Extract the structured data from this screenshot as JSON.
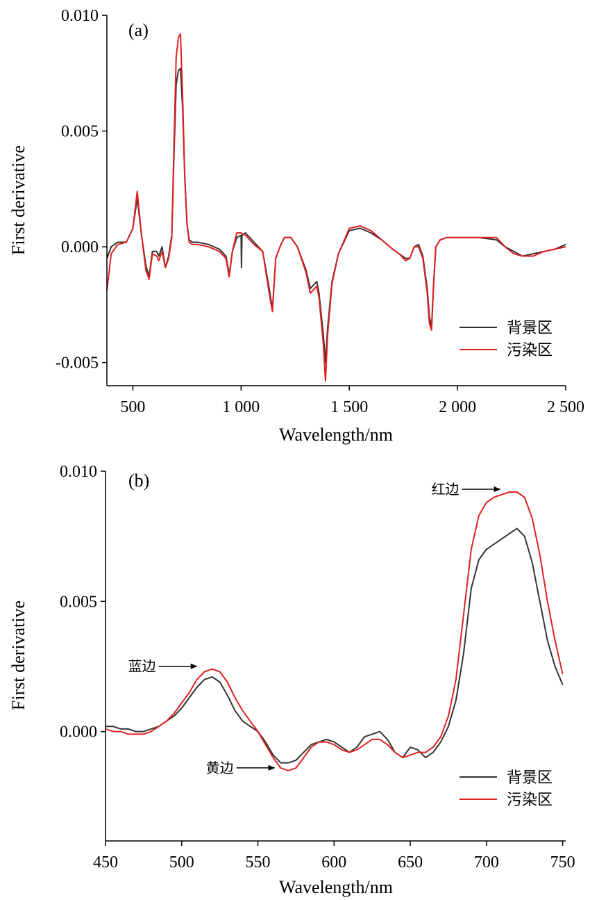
{
  "chart_data": [
    {
      "type": "line",
      "panel_label": "(a)",
      "xlabel": "Wavelength/nm",
      "ylabel": "First derivative",
      "xlim": [
        380,
        2500
      ],
      "ylim": [
        -0.006,
        0.01
      ],
      "xticks": [
        500,
        1000,
        1500,
        2000,
        2500
      ],
      "xtick_labels": [
        "500",
        "1 000",
        "1 500",
        "2 000",
        "2 500"
      ],
      "yticks": [
        -0.005,
        0.0,
        0.005,
        0.01
      ],
      "ytick_labels": [
        "-0.005",
        "0.000",
        "0.005",
        "0.010"
      ],
      "legend": {
        "position": "bottom-right"
      },
      "series": [
        {
          "name": "背景区",
          "color": "#333333",
          "x": [
            380,
            400,
            430,
            470,
            500,
            520,
            540,
            560,
            575,
            590,
            610,
            620,
            635,
            650,
            665,
            680,
            690,
            700,
            710,
            720,
            730,
            740,
            750,
            760,
            775,
            800,
            850,
            900,
            930,
            945,
            960,
            980,
            1000,
            1002,
            1004,
            1020,
            1060,
            1100,
            1130,
            1145,
            1160,
            1180,
            1200,
            1230,
            1260,
            1300,
            1320,
            1340,
            1350,
            1360,
            1380,
            1390,
            1400,
            1420,
            1450,
            1500,
            1550,
            1600,
            1650,
            1700,
            1730,
            1760,
            1780,
            1800,
            1820,
            1840,
            1860,
            1870,
            1880,
            1890,
            1900,
            1920,
            1950,
            2000,
            2100,
            2180,
            2220,
            2260,
            2300,
            2350,
            2400,
            2450,
            2500
          ],
          "y": [
            -0.0005,
            0.0,
            0.0002,
            0.0002,
            0.0008,
            0.0021,
            0.0005,
            -0.0008,
            -0.0013,
            -0.0002,
            -0.0002,
            -0.0004,
            0.0,
            -0.0009,
            -0.0004,
            0.0005,
            0.004,
            0.007,
            0.0076,
            0.0077,
            0.006,
            0.003,
            0.001,
            0.0003,
            0.0002,
            0.0002,
            0.0001,
            -0.0001,
            -0.0004,
            -0.0012,
            -0.0002,
            0.0004,
            0.0005,
            -0.0009,
            0.0005,
            0.0006,
            0.0002,
            -0.0002,
            -0.0018,
            -0.0027,
            -0.0005,
            0.0,
            0.0004,
            0.0004,
            0.0,
            -0.001,
            -0.0018,
            -0.0016,
            -0.0015,
            -0.002,
            -0.0038,
            -0.005,
            -0.0035,
            -0.0015,
            -0.0003,
            0.0007,
            0.0008,
            0.0006,
            0.0003,
            -0.0001,
            -0.0003,
            -0.0005,
            -0.0005,
            0.0,
            0.0001,
            -0.0004,
            -0.0018,
            -0.003,
            -0.0035,
            -0.0015,
            0.0,
            0.0003,
            0.0004,
            0.0004,
            0.0004,
            0.0003,
            0.0,
            -0.0002,
            -0.0004,
            -0.0003,
            -0.0002,
            -0.0001,
            0.0001
          ]
        },
        {
          "name": "污染区",
          "color": "#e02020",
          "x": [
            380,
            400,
            430,
            470,
            500,
            520,
            540,
            560,
            575,
            590,
            610,
            620,
            635,
            650,
            665,
            680,
            690,
            700,
            710,
            720,
            730,
            740,
            750,
            760,
            775,
            800,
            850,
            900,
            930,
            945,
            960,
            980,
            1000,
            1020,
            1060,
            1100,
            1130,
            1145,
            1160,
            1180,
            1200,
            1230,
            1260,
            1300,
            1320,
            1340,
            1350,
            1360,
            1380,
            1390,
            1400,
            1420,
            1450,
            1500,
            1550,
            1600,
            1650,
            1700,
            1730,
            1760,
            1780,
            1800,
            1820,
            1840,
            1860,
            1870,
            1880,
            1890,
            1900,
            1920,
            1950,
            2000,
            2100,
            2180,
            2220,
            2260,
            2300,
            2350,
            2400,
            2450,
            2500
          ],
          "y": [
            -0.0019,
            -0.0003,
            0.0001,
            0.0002,
            0.0008,
            0.0024,
            0.0005,
            -0.001,
            -0.0014,
            -0.0003,
            -0.0004,
            -0.0006,
            -0.0002,
            -0.0009,
            -0.0005,
            0.0004,
            0.0045,
            0.0082,
            0.009,
            0.0092,
            0.0065,
            0.003,
            0.001,
            0.0002,
            0.0001,
            0.0001,
            0.0,
            -0.0002,
            -0.0005,
            -0.0013,
            -0.0002,
            0.0006,
            0.0006,
            0.0005,
            0.0001,
            -0.0002,
            -0.002,
            -0.0028,
            -0.0005,
            0.0,
            0.0004,
            0.0004,
            0.0,
            -0.0011,
            -0.002,
            -0.0018,
            -0.0017,
            -0.0022,
            -0.0042,
            -0.0058,
            -0.0038,
            -0.0016,
            -0.0003,
            0.0008,
            0.0009,
            0.0007,
            0.0003,
            -0.0001,
            -0.0003,
            -0.0006,
            -0.0005,
            0.0,
            0.0,
            -0.0005,
            -0.002,
            -0.0033,
            -0.0036,
            -0.0016,
            0.0,
            0.0003,
            0.0004,
            0.0004,
            0.0004,
            0.0004,
            0.0,
            -0.0003,
            -0.0004,
            -0.0004,
            -0.0002,
            -0.0001,
            0.0
          ]
        }
      ]
    },
    {
      "type": "line",
      "panel_label": "(b)",
      "xlabel": "Wavelength/nm",
      "ylabel": "First derivative",
      "xlim": [
        450,
        752
      ],
      "ylim": [
        -0.0042,
        0.01
      ],
      "xticks": [
        450,
        500,
        550,
        600,
        650,
        700,
        750
      ],
      "xtick_labels": [
        "450",
        "500",
        "550",
        "600",
        "650",
        "700",
        "750"
      ],
      "yticks": [
        0.0,
        0.005,
        0.01
      ],
      "ytick_labels": [
        "0.000",
        "0.005",
        "0.010"
      ],
      "legend": {
        "position": "bottom-right"
      },
      "annotations": [
        {
          "text": "蓝边",
          "x": 520,
          "y": 0.0024
        },
        {
          "text": "黄边",
          "x": 571,
          "y": -0.0015
        },
        {
          "text": "红边",
          "x": 719,
          "y": 0.0092
        }
      ],
      "series": [
        {
          "name": "背景区",
          "color": "#333333",
          "x": [
            450,
            455,
            460,
            465,
            470,
            475,
            480,
            485,
            490,
            495,
            500,
            505,
            510,
            515,
            520,
            525,
            530,
            535,
            540,
            545,
            550,
            555,
            560,
            565,
            570,
            575,
            580,
            585,
            590,
            595,
            600,
            605,
            610,
            615,
            620,
            625,
            630,
            635,
            640,
            645,
            650,
            655,
            660,
            665,
            670,
            675,
            680,
            685,
            690,
            695,
            700,
            705,
            710,
            715,
            720,
            725,
            730,
            735,
            740,
            745,
            750
          ],
          "y": [
            0.0002,
            0.0002,
            0.0001,
            0.0001,
            0.0,
            0.0,
            0.0001,
            0.0002,
            0.0004,
            0.0006,
            0.0009,
            0.0013,
            0.0017,
            0.002,
            0.0021,
            0.0019,
            0.0014,
            0.0008,
            0.0004,
            0.0002,
            0.0,
            -0.0004,
            -0.0009,
            -0.0012,
            -0.0012,
            -0.0011,
            -0.0008,
            -0.0005,
            -0.0004,
            -0.0003,
            -0.0004,
            -0.0006,
            -0.0008,
            -0.0006,
            -0.0002,
            -0.0001,
            0.0,
            -0.0003,
            -0.0008,
            -0.001,
            -0.0006,
            -0.0007,
            -0.001,
            -0.0008,
            -0.0004,
            0.0002,
            0.0012,
            0.003,
            0.0055,
            0.0066,
            0.007,
            0.0072,
            0.0074,
            0.0076,
            0.0078,
            0.0075,
            0.0065,
            0.005,
            0.0035,
            0.0025,
            0.0018
          ]
        },
        {
          "name": "污染区",
          "color": "#e02020",
          "x": [
            450,
            455,
            460,
            465,
            470,
            475,
            480,
            485,
            490,
            495,
            500,
            505,
            510,
            515,
            520,
            525,
            530,
            535,
            540,
            545,
            550,
            555,
            560,
            565,
            570,
            575,
            580,
            585,
            590,
            595,
            600,
            605,
            610,
            615,
            620,
            625,
            630,
            635,
            640,
            645,
            650,
            655,
            660,
            665,
            670,
            675,
            680,
            685,
            690,
            695,
            700,
            705,
            710,
            715,
            720,
            725,
            730,
            735,
            740,
            745,
            750
          ],
          "y": [
            0.0001,
            0.0,
            0.0,
            -0.0001,
            -0.0001,
            -0.0001,
            0.0,
            0.0002,
            0.0004,
            0.0007,
            0.0011,
            0.0015,
            0.002,
            0.0023,
            0.0024,
            0.0023,
            0.0019,
            0.0013,
            0.0008,
            0.0004,
            0.0,
            -0.0005,
            -0.001,
            -0.0014,
            -0.0015,
            -0.0014,
            -0.001,
            -0.0006,
            -0.0004,
            -0.0004,
            -0.0005,
            -0.0007,
            -0.0008,
            -0.0007,
            -0.0005,
            -0.0003,
            -0.0003,
            -0.0005,
            -0.0008,
            -0.001,
            -0.0009,
            -0.0008,
            -0.0008,
            -0.0006,
            -0.0002,
            0.0006,
            0.002,
            0.0045,
            0.007,
            0.0083,
            0.0088,
            0.009,
            0.0091,
            0.0092,
            0.0092,
            0.009,
            0.0082,
            0.0068,
            0.005,
            0.0035,
            0.0022
          ]
        }
      ]
    }
  ]
}
